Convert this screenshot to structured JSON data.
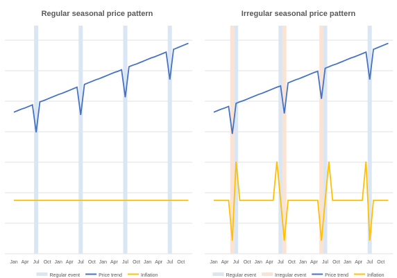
{
  "chart_data": [
    {
      "type": "line",
      "title": "Regular seasonal price pattern",
      "categories": [
        "Jan",
        null,
        null,
        "Apr",
        null,
        null,
        "Jul",
        null,
        null,
        "Oct",
        null,
        null,
        "Jan",
        null,
        null,
        "Apr",
        null,
        null,
        "Jul",
        null,
        null,
        "Oct",
        null,
        null,
        "Jan",
        null,
        null,
        "Apr",
        null,
        null,
        "Jul",
        null,
        null,
        "Oct",
        null,
        null,
        "Jan",
        null,
        null,
        "Apr",
        null,
        null,
        "Jul",
        null,
        null,
        "Oct",
        null,
        null
      ],
      "ylim": [
        0,
        8
      ],
      "yticks": [
        0,
        1,
        2,
        3,
        4,
        5,
        6,
        7
      ],
      "grid": true,
      "events": [
        {
          "name": "Regular event",
          "color": "#dae6f4",
          "at": [
            6,
            18,
            30,
            42
          ]
        }
      ],
      "series": [
        {
          "name": "Price trend",
          "color": "#4472c4",
          "values": [
            4.64,
            4.69,
            4.74,
            4.78,
            4.83,
            4.88,
            3.98,
            4.98,
            5.02,
            5.07,
            5.12,
            5.17,
            5.22,
            5.26,
            5.31,
            5.36,
            5.41,
            5.46,
            4.55,
            5.55,
            5.6,
            5.65,
            5.7,
            5.74,
            5.79,
            5.84,
            5.89,
            5.94,
            5.98,
            6.03,
            5.13,
            6.13,
            6.18,
            6.22,
            6.27,
            6.32,
            6.37,
            6.42,
            6.46,
            6.51,
            6.56,
            6.61,
            5.71,
            6.7,
            6.75,
            6.8,
            6.85,
            6.9
          ]
        },
        {
          "name": "Inflation",
          "color": "#ffc000",
          "values": [
            1.75,
            1.75,
            1.75,
            1.75,
            1.75,
            1.75,
            1.75,
            1.75,
            1.75,
            1.75,
            1.75,
            1.75,
            1.75,
            1.75,
            1.75,
            1.75,
            1.75,
            1.75,
            1.75,
            1.75,
            1.75,
            1.75,
            1.75,
            1.75,
            1.75,
            1.75,
            1.75,
            1.75,
            1.75,
            1.75,
            1.75,
            1.75,
            1.75,
            1.75,
            1.75,
            1.75,
            1.75,
            1.75,
            1.75,
            1.75,
            1.75,
            1.75,
            1.75,
            1.75,
            1.75,
            1.75,
            1.75,
            1.75
          ]
        }
      ]
    },
    {
      "type": "line",
      "title": "Irregular seasonal price pattern",
      "categories": [
        "Jan",
        null,
        null,
        "Apr",
        null,
        null,
        "Jul",
        null,
        null,
        "Oct",
        null,
        null,
        "Jan",
        null,
        null,
        "Apr",
        null,
        null,
        "Jul",
        null,
        null,
        "Oct",
        null,
        null,
        "Jan",
        null,
        null,
        "Apr",
        null,
        null,
        "Jul",
        null,
        null,
        "Oct",
        null,
        null,
        "Jan",
        null,
        null,
        "Apr",
        null,
        null,
        "Jul",
        null,
        null,
        "Oct",
        null,
        null
      ],
      "ylim": [
        0,
        8
      ],
      "yticks": [
        0,
        1,
        2,
        3,
        4,
        5,
        6,
        7
      ],
      "grid": true,
      "events": [
        {
          "name": "Regular event",
          "color": "#dae6f4",
          "at": [
            6,
            18,
            30,
            42
          ]
        },
        {
          "name": "Irregular event",
          "color": "#fbe3d4",
          "at": [
            5,
            19,
            29
          ]
        }
      ],
      "series": [
        {
          "name": "Price trend",
          "color": "#4472c4",
          "values": [
            4.64,
            4.69,
            4.74,
            4.78,
            4.83,
            3.93,
            4.93,
            4.98,
            5.02,
            5.07,
            5.12,
            5.17,
            5.22,
            5.26,
            5.31,
            5.36,
            5.41,
            5.46,
            5.5,
            4.6,
            5.6,
            5.65,
            5.7,
            5.74,
            5.79,
            5.84,
            5.89,
            5.94,
            5.98,
            5.08,
            6.08,
            6.13,
            6.18,
            6.22,
            6.27,
            6.32,
            6.37,
            6.42,
            6.46,
            6.51,
            6.56,
            6.61,
            5.71,
            6.7,
            6.75,
            6.8,
            6.85,
            6.9
          ]
        },
        {
          "name": "Inflation",
          "color": "#ffc000",
          "values": [
            1.75,
            1.75,
            1.75,
            1.75,
            1.75,
            0.43,
            3.02,
            1.75,
            1.75,
            1.75,
            1.75,
            1.75,
            1.75,
            1.75,
            1.75,
            1.75,
            1.75,
            3.02,
            1.75,
            0.43,
            1.75,
            1.75,
            1.75,
            1.75,
            1.75,
            1.75,
            1.75,
            1.75,
            1.75,
            0.43,
            1.75,
            3.02,
            1.75,
            1.75,
            1.75,
            1.75,
            1.75,
            1.75,
            1.75,
            1.75,
            1.75,
            3.02,
            0.43,
            1.75,
            1.75,
            1.75,
            1.75,
            1.75
          ]
        }
      ]
    }
  ]
}
